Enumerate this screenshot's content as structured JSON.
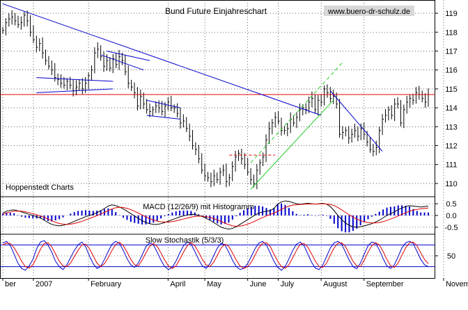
{
  "chart_data": {
    "type": "line",
    "title": "Bund Future Einjahreschart",
    "source_label": "www.buero-dr-schulz.de",
    "provider_label": "Hoppenstedt Charts",
    "colors": {
      "price": "#000000",
      "trendline": "#0000cc",
      "resistance": "#e00000",
      "channel": "#22cc22",
      "grid": "#000000",
      "macd": "#000000",
      "signal": "#e00000",
      "histogram": "#0000cc",
      "stoch_k": "#0000cc",
      "stoch_d": "#e00000",
      "band": "#0000cc"
    },
    "x_axis": {
      "labels": [
        "ber",
        "2007",
        "February",
        "April",
        "May",
        "June",
        "July",
        "August",
        "September",
        "November"
      ],
      "label_index": [
        0,
        10,
        28,
        54,
        66,
        80,
        90,
        104,
        118,
        144
      ]
    },
    "price_panel": {
      "ylim": [
        109.3,
        119.7
      ],
      "yticks": [
        110,
        111,
        112,
        113,
        114,
        115,
        116,
        117,
        118,
        119
      ],
      "resistance_level": 114.7,
      "close": [
        118.1,
        118.5,
        118.7,
        118.8,
        118.6,
        118.4,
        118.5,
        118.9,
        118.6,
        118.0,
        117.6,
        117.2,
        117.4,
        116.9,
        116.5,
        116.2,
        116.0,
        115.6,
        115.5,
        115.3,
        115.2,
        115.4,
        115.2,
        114.9,
        115.1,
        115.3,
        115.0,
        115.3,
        115.7,
        116.0,
        116.9,
        117.1,
        116.7,
        116.2,
        116.5,
        116.1,
        116.6,
        116.3,
        116.7,
        116.5,
        115.9,
        115.3,
        115.1,
        114.8,
        114.1,
        114.6,
        114.2,
        113.9,
        113.8,
        113.9,
        114.1,
        114.0,
        113.8,
        114.1,
        114.3,
        114.0,
        114.0,
        113.7,
        113.2,
        113.3,
        112.9,
        112.5,
        112.0,
        111.8,
        111.3,
        110.7,
        110.4,
        110.3,
        110.1,
        110.4,
        110.2,
        110.6,
        110.7,
        110.1,
        110.3,
        110.9,
        111.4,
        111.6,
        111.3,
        111.0,
        110.6,
        110.2,
        110.0,
        110.7,
        111.1,
        111.4,
        112.3,
        112.9,
        113.2,
        113.5,
        113.3,
        112.8,
        112.8,
        112.9,
        113.4,
        113.2,
        113.5,
        113.9,
        114.0,
        113.9,
        114.3,
        114.5,
        113.9,
        114.4,
        114.3,
        115.0,
        114.8,
        114.5,
        114.6,
        114.2,
        112.6,
        112.7,
        112.8,
        112.4,
        112.6,
        112.8,
        112.5,
        112.9,
        112.6,
        112.2,
        111.8,
        111.7,
        111.9,
        112.8,
        113.4,
        113.6,
        113.9,
        113.6,
        114.2,
        114.2,
        113.2,
        113.9,
        114.3,
        114.5,
        114.4,
        114.8,
        114.7,
        114.5,
        114.3,
        114.7
      ],
      "trendlines": [
        {
          "name": "main-downtrend",
          "from": [
            0,
            119.5
          ],
          "to": [
            104,
            113.6
          ],
          "color_key": "trendline"
        },
        {
          "name": "flag1-top",
          "from": [
            11,
            115.6
          ],
          "to": [
            36,
            115.4
          ],
          "color_key": "trendline"
        },
        {
          "name": "flag1-bottom",
          "from": [
            11,
            114.8
          ],
          "to": [
            36,
            115.0
          ],
          "color_key": "trendline"
        },
        {
          "name": "wedge-top",
          "from": [
            34,
            117.0
          ],
          "to": [
            48,
            116.5
          ],
          "color_key": "trendline"
        },
        {
          "name": "wedge-bottom",
          "from": [
            32,
            116.8
          ],
          "to": [
            46,
            116.0
          ],
          "color_key": "trendline"
        },
        {
          "name": "flag2-top",
          "from": [
            47,
            114.4
          ],
          "to": [
            58,
            114.0
          ],
          "color_key": "trendline"
        },
        {
          "name": "flag2-bottom",
          "from": [
            47,
            113.6
          ],
          "to": [
            58,
            113.4
          ],
          "color_key": "trendline"
        },
        {
          "name": "september-downtrend",
          "from": [
            107,
            114.9
          ],
          "to": [
            124,
            111.7
          ],
          "color_key": "trendline"
        }
      ],
      "channel_lines": [
        {
          "name": "channel-upper",
          "from": [
            81,
            111.1
          ],
          "to": [
            111,
            116.4
          ],
          "dashed": true
        },
        {
          "name": "channel-lower",
          "from": [
            81,
            109.7
          ],
          "to": [
            108,
            114.4
          ],
          "dashed": false
        }
      ],
      "support_lines": [
        {
          "name": "july-resistance",
          "from": [
            74,
            111.5
          ],
          "to": [
            89,
            111.5
          ],
          "dashed": true
        }
      ]
    },
    "macd_panel": {
      "title": "MACD (12/26/9) mit Histogramm",
      "ylim": [
        -0.8,
        0.8
      ],
      "yticks": [
        0.5,
        0.0,
        -0.5
      ],
      "ytick_labels": [
        "0.5",
        "0.0",
        "-0.5"
      ],
      "macd": [
        0.1,
        0.18,
        0.22,
        0.24,
        0.2,
        0.15,
        0.1,
        0.05,
        0.0,
        -0.05,
        -0.1,
        -0.2,
        -0.3,
        -0.38,
        -0.42,
        -0.44,
        -0.42,
        -0.38,
        -0.32,
        -0.25,
        -0.18,
        -0.12,
        -0.05,
        0.0,
        0.05,
        0.12,
        0.2,
        0.3,
        0.4,
        0.45,
        0.42,
        0.36,
        0.28,
        0.18,
        0.08,
        -0.02,
        -0.12,
        -0.22,
        -0.3,
        -0.35,
        -0.38,
        -0.38,
        -0.35,
        -0.3,
        -0.24,
        -0.18,
        -0.12,
        -0.06,
        -0.02,
        0.02,
        0.05,
        0.04,
        0.0,
        -0.05,
        -0.12,
        -0.2,
        -0.3,
        -0.4,
        -0.5,
        -0.55,
        -0.58,
        -0.55,
        -0.48,
        -0.38,
        -0.28,
        -0.18,
        -0.08,
        0.02,
        0.1,
        0.15,
        0.18,
        0.2,
        0.3,
        0.48,
        0.58,
        0.62,
        0.6,
        0.55,
        0.5,
        0.48,
        0.5,
        0.52,
        0.5,
        0.48,
        0.5,
        0.52,
        0.48,
        0.38,
        0.2,
        0.0,
        -0.18,
        -0.32,
        -0.42,
        -0.48,
        -0.5,
        -0.48,
        -0.44,
        -0.4,
        -0.35,
        -0.28,
        -0.2,
        -0.1,
        0.0,
        0.08,
        0.15,
        0.25,
        0.32,
        0.38,
        0.42,
        0.4,
        0.38,
        0.36,
        0.38,
        0.4
      ],
      "signal": [
        0.05,
        0.1,
        0.15,
        0.18,
        0.19,
        0.18,
        0.16,
        0.12,
        0.08,
        0.03,
        -0.02,
        -0.08,
        -0.15,
        -0.22,
        -0.29,
        -0.34,
        -0.37,
        -0.38,
        -0.37,
        -0.34,
        -0.3,
        -0.25,
        -0.19,
        -0.13,
        -0.07,
        -0.01,
        0.06,
        0.13,
        0.21,
        0.28,
        0.33,
        0.35,
        0.34,
        0.3,
        0.25,
        0.18,
        0.1,
        0.02,
        -0.06,
        -0.13,
        -0.19,
        -0.24,
        -0.27,
        -0.28,
        -0.28,
        -0.26,
        -0.23,
        -0.19,
        -0.15,
        -0.11,
        -0.07,
        -0.04,
        -0.03,
        -0.03,
        -0.05,
        -0.08,
        -0.13,
        -0.19,
        -0.26,
        -0.33,
        -0.39,
        -0.44,
        -0.46,
        -0.45,
        -0.42,
        -0.37,
        -0.31,
        -0.24,
        -0.16,
        -0.09,
        -0.02,
        0.04,
        0.1,
        0.18,
        0.26,
        0.34,
        0.4,
        0.44,
        0.46,
        0.47,
        0.48,
        0.49,
        0.49,
        0.49,
        0.49,
        0.5,
        0.49,
        0.47,
        0.42,
        0.34,
        0.24,
        0.13,
        0.03,
        -0.07,
        -0.15,
        -0.22,
        -0.27,
        -0.3,
        -0.32,
        -0.32,
        -0.3,
        -0.26,
        -0.21,
        -0.15,
        -0.09,
        -0.02,
        0.05,
        0.12,
        0.18,
        0.23,
        0.26,
        0.28,
        0.3,
        0.32
      ]
    },
    "stochastic_panel": {
      "title": "Slow Stochastik (5/3/3)",
      "ylim": [
        0,
        100
      ],
      "upper_band": 80,
      "lower_band": 20,
      "yticks": [
        50
      ],
      "ytick_labels": [
        "50"
      ],
      "k": [
        85,
        90,
        78,
        55,
        30,
        15,
        10,
        22,
        40,
        70,
        88,
        92,
        80,
        60,
        35,
        20,
        12,
        25,
        45,
        65,
        80,
        88,
        75,
        50,
        28,
        15,
        20,
        40,
        62,
        82,
        90,
        84,
        65,
        42,
        25,
        18,
        30,
        52,
        75,
        86,
        80,
        60,
        38,
        20,
        12,
        18,
        35,
        58,
        78,
        88,
        82,
        62,
        40,
        22,
        15,
        28,
        50,
        72,
        85,
        80,
        60,
        38,
        20,
        12,
        15,
        28,
        48,
        70,
        85,
        90,
        80,
        58,
        35,
        18,
        10,
        20,
        42,
        65,
        82,
        88,
        78,
        55,
        32,
        16,
        12,
        25,
        48,
        72,
        86,
        90,
        82,
        60,
        38,
        20,
        14,
        30,
        55,
        78,
        88,
        85,
        66,
        42,
        22,
        15,
        25,
        48,
        72,
        86,
        90,
        84,
        62,
        40,
        25,
        20
      ],
      "d": [
        80,
        85,
        84,
        72,
        55,
        35,
        20,
        16,
        25,
        45,
        68,
        84,
        86,
        75,
        55,
        35,
        22,
        20,
        30,
        48,
        65,
        80,
        82,
        70,
        50,
        30,
        20,
        28,
        45,
        65,
        82,
        87,
        78,
        60,
        40,
        25,
        22,
        38,
        58,
        76,
        84,
        76,
        58,
        38,
        22,
        15,
        22,
        40,
        60,
        78,
        86,
        78,
        60,
        40,
        25,
        20,
        32,
        52,
        72,
        82,
        76,
        58,
        38,
        22,
        15,
        20,
        32,
        52,
        72,
        85,
        86,
        76,
        55,
        35,
        20,
        15,
        25,
        45,
        65,
        82,
        84,
        74,
        55,
        35,
        20,
        18,
        30,
        52,
        72,
        85,
        86,
        76,
        55,
        35,
        22,
        20,
        38,
        60,
        78,
        86,
        80,
        62,
        40,
        22,
        18,
        30,
        52,
        72,
        86,
        88,
        78,
        58,
        40,
        28
      ]
    }
  }
}
